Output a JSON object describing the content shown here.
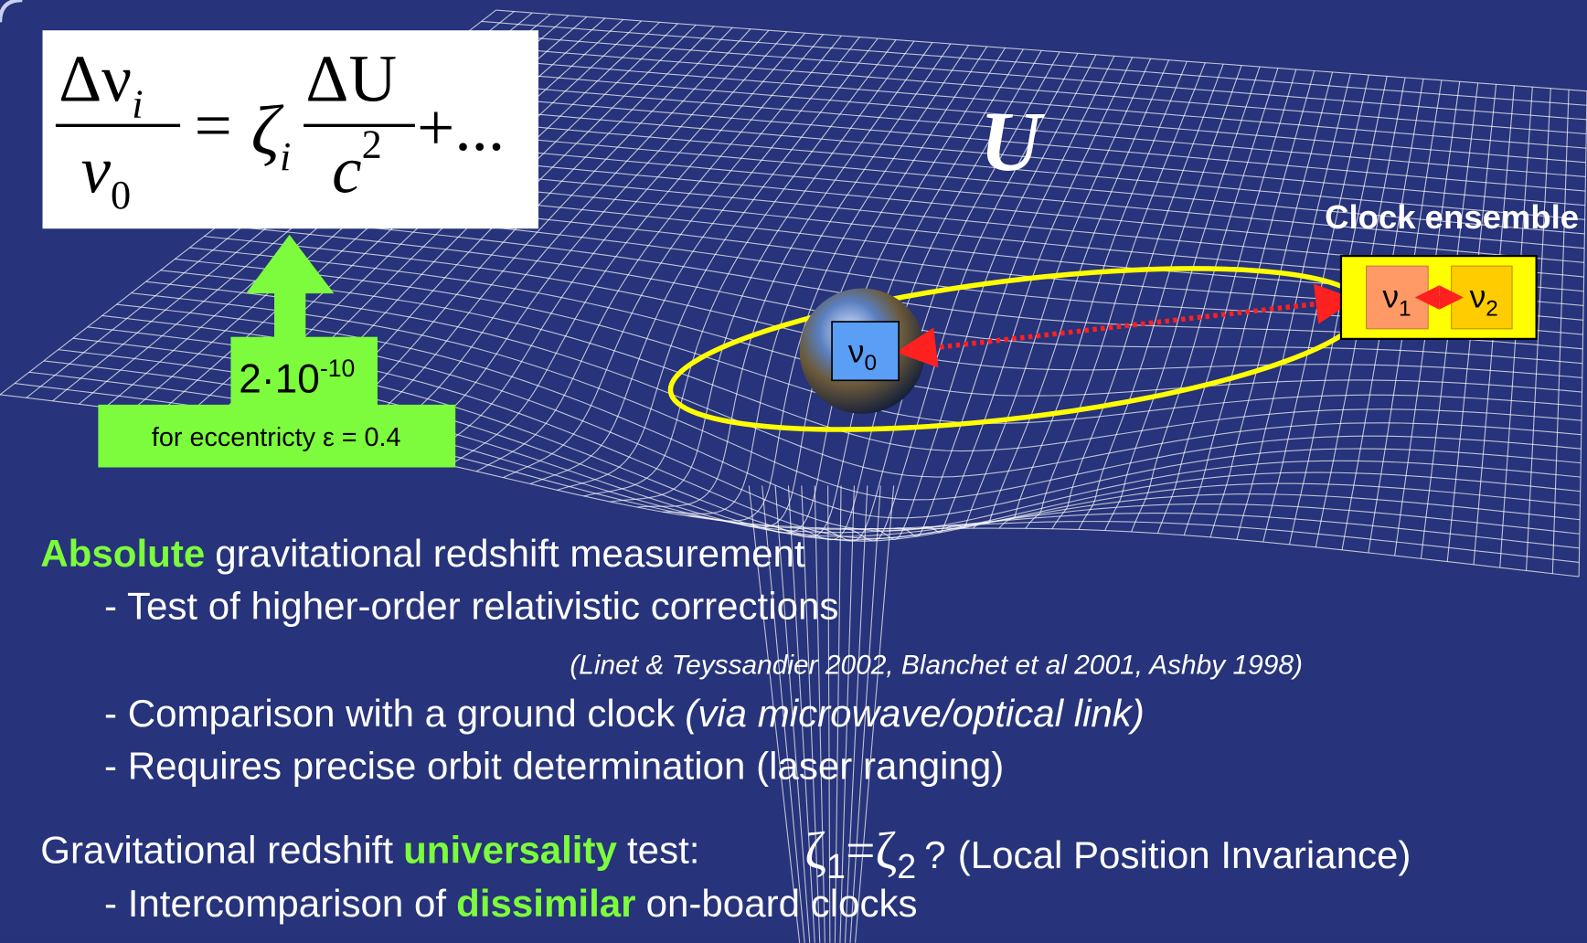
{
  "formula": {
    "numerator": "Δν",
    "numerator_sub": "i",
    "denominator": "ν",
    "denominator_sub": "0",
    "equals": "=",
    "zeta": "ζ",
    "zeta_sub": "i",
    "potential_numerator": "ΔU",
    "potential_denominator": "c",
    "potential_denominator_sup": "2",
    "tail": "+..."
  },
  "potential_label": "U",
  "estimate": {
    "base": "2·10",
    "exponent": "-10",
    "note": "for eccentricty ε = 0.4"
  },
  "earth_clock": {
    "symbol": "ν",
    "sub": "0"
  },
  "clock_ensemble": {
    "title": "Clock ensemble",
    "clocks": [
      {
        "symbol": "ν",
        "sub": "1"
      },
      {
        "symbol": "ν",
        "sub": "2"
      }
    ]
  },
  "measurement": {
    "highlight": "Absolute",
    "heading": "gravitational redshift measurement",
    "items": [
      "- Test of higher-order relativistic corrections"
    ],
    "citation": "(Linet & Teyssandier 2002, Blanchet et al 2001, Ashby 1998)",
    "comparison": "- Comparison with a ground clock",
    "comparison_note": "(via microwave/optical link)",
    "orbit": "- Requires precise orbit determination (laser ranging)"
  },
  "universality": {
    "lead": "Gravitational redshift",
    "highlight": "universality",
    "trail": "test:",
    "zeta1": "ζ",
    "sub1": "1",
    "equals": "=",
    "zeta2": "ζ",
    "sub2": "2",
    "question": "?",
    "note": "(Local Position Invariance)",
    "item_lead": "- Intercomparison of",
    "item_highlight": "dissimilar",
    "item_trail": "on-board clocks"
  }
}
